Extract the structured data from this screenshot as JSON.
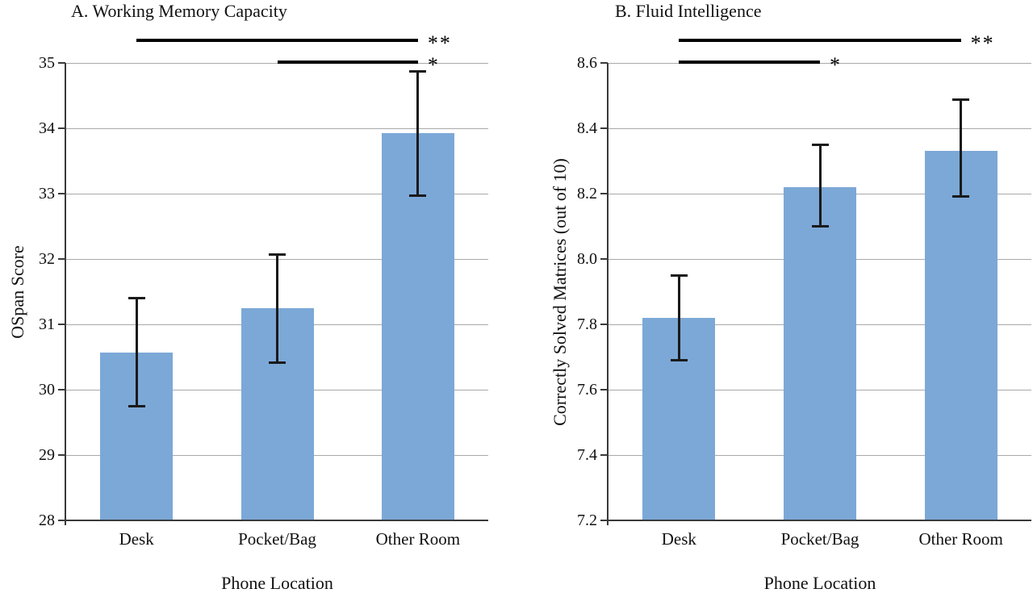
{
  "chart_data": [
    {
      "type": "bar",
      "title": "A. Working Memory Capacity",
      "xlabel": "Phone Location",
      "ylabel": "OSpan Score",
      "categories": [
        "Desk",
        "Pocket/Bag",
        "Other Room"
      ],
      "values": [
        30.57,
        31.25,
        33.92
      ],
      "error_low": [
        29.74,
        30.41,
        32.96
      ],
      "error_high": [
        31.41,
        32.07,
        34.88
      ],
      "ylim": [
        28,
        35
      ],
      "ytick_step": 1,
      "ytick_decimals": 0,
      "grid": true,
      "legend": null,
      "significance": [
        {
          "from": "Desk",
          "to": "Other Room",
          "label": "**"
        },
        {
          "from": "Pocket/Bag",
          "to": "Other Room",
          "label": "*"
        }
      ]
    },
    {
      "type": "bar",
      "title": "B. Fluid Intelligence",
      "xlabel": "Phone Location",
      "ylabel": "Correctly Solved Matrices (out of 10)",
      "categories": [
        "Desk",
        "Pocket/Bag",
        "Other Room"
      ],
      "values": [
        7.82,
        8.22,
        8.33
      ],
      "error_low": [
        7.69,
        8.1,
        8.19
      ],
      "error_high": [
        7.95,
        8.35,
        8.49
      ],
      "ylim": [
        7.2,
        8.6
      ],
      "ytick_step": 0.2,
      "ytick_decimals": 1,
      "grid": true,
      "legend": null,
      "significance": [
        {
          "from": "Desk",
          "to": "Other Room",
          "label": "**"
        },
        {
          "from": "Desk",
          "to": "Pocket/Bag",
          "label": "*"
        }
      ]
    }
  ],
  "colors": {
    "bar_fill": "#7CA8D7",
    "gridline": "#A9A9A9",
    "axis": "#3A3A3A",
    "error_bar": "#1A1A1A",
    "significance_line": "#000000",
    "text": "#111111",
    "background": "#FFFFFF"
  }
}
